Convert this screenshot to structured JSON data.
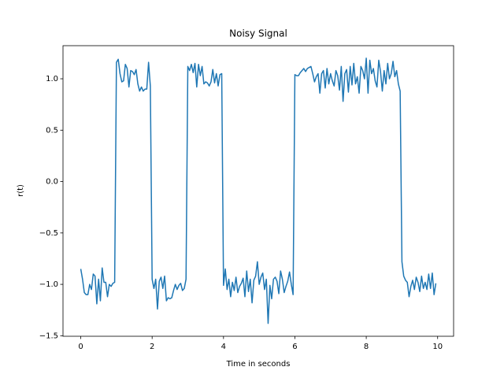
{
  "chart_data": {
    "type": "line",
    "title": "Noisy Signal",
    "x_label": "Time in seconds",
    "y_label": "r(t)",
    "color": "#1f77b4",
    "xlim": [
      -0.4975,
      10.4475
    ],
    "ylim": [
      -1.505,
      1.322
    ],
    "xticks": [
      0,
      2,
      4,
      6,
      8,
      10
    ],
    "yticks": [
      {
        "value": -1.5,
        "label": "−1.5"
      },
      {
        "value": -1.0,
        "label": "−1.0"
      },
      {
        "value": -0.5,
        "label": "−0.5"
      },
      {
        "value": 0.0,
        "label": "0.0"
      },
      {
        "value": 0.5,
        "label": "0.5"
      },
      {
        "value": 1.0,
        "label": "1.0"
      }
    ],
    "x": [
      0,
      0.05,
      0.1,
      0.15,
      0.2,
      0.25,
      0.3,
      0.35,
      0.4,
      0.45,
      0.5,
      0.55,
      0.6,
      0.65,
      0.7,
      0.75,
      0.8,
      0.85,
      0.9,
      0.95,
      1,
      1.05,
      1.1,
      1.15,
      1.2,
      1.25,
      1.3,
      1.35,
      1.4,
      1.45,
      1.5,
      1.55,
      1.6,
      1.65,
      1.7,
      1.75,
      1.8,
      1.85,
      1.9,
      1.95,
      2,
      2.05,
      2.1,
      2.15,
      2.2,
      2.25,
      2.3,
      2.35,
      2.4,
      2.45,
      2.5,
      2.55,
      2.6,
      2.65,
      2.7,
      2.75,
      2.8,
      2.85,
      2.9,
      2.95,
      3,
      3.05,
      3.1,
      3.15,
      3.2,
      3.25,
      3.3,
      3.35,
      3.4,
      3.45,
      3.5,
      3.55,
      3.6,
      3.65,
      3.7,
      3.75,
      3.8,
      3.85,
      3.9,
      3.95,
      4,
      4.05,
      4.1,
      4.15,
      4.2,
      4.25,
      4.3,
      4.35,
      4.4,
      4.45,
      4.5,
      4.55,
      4.6,
      4.65,
      4.7,
      4.75,
      4.8,
      4.85,
      4.9,
      4.95,
      5,
      5.05,
      5.1,
      5.15,
      5.2,
      5.25,
      5.3,
      5.35,
      5.4,
      5.45,
      5.5,
      5.55,
      5.6,
      5.65,
      5.7,
      5.75,
      5.8,
      5.85,
      5.9,
      5.95,
      6,
      6.05,
      6.1,
      6.15,
      6.2,
      6.25,
      6.3,
      6.35,
      6.4,
      6.45,
      6.5,
      6.55,
      6.6,
      6.65,
      6.7,
      6.75,
      6.8,
      6.85,
      6.9,
      6.95,
      7,
      7.05,
      7.1,
      7.15,
      7.2,
      7.25,
      7.3,
      7.35,
      7.4,
      7.45,
      7.5,
      7.55,
      7.6,
      7.65,
      7.7,
      7.75,
      7.8,
      7.85,
      7.9,
      7.95,
      8,
      8.05,
      8.1,
      8.15,
      8.2,
      8.25,
      8.3,
      8.35,
      8.4,
      8.45,
      8.5,
      8.55,
      8.6,
      8.65,
      8.7,
      8.75,
      8.8,
      8.85,
      8.9,
      8.95,
      9,
      9.05,
      9.1,
      9.15,
      9.2,
      9.25,
      9.3,
      9.35,
      9.4,
      9.45,
      9.5,
      9.55,
      9.6,
      9.65,
      9.7,
      9.75,
      9.8,
      9.85,
      9.9,
      9.95
    ],
    "values": [
      -0.85,
      -0.95,
      -1.08,
      -1.1,
      -1.1,
      -1.0,
      -1.05,
      -0.9,
      -0.92,
      -1.19,
      -0.95,
      -1.16,
      -0.84,
      -0.98,
      -0.98,
      -1.12,
      -1.0,
      -1.02,
      -0.99,
      -0.98,
      1.16,
      1.19,
      1.05,
      0.97,
      0.98,
      1.14,
      1.1,
      0.92,
      1.08,
      1.07,
      1.04,
      1.09,
      0.95,
      0.88,
      0.92,
      0.88,
      0.9,
      0.9,
      1.16,
      0.93,
      -0.95,
      -1.04,
      -0.95,
      -1.24,
      -0.97,
      -0.93,
      -1.04,
      -0.92,
      -1.16,
      -1.13,
      -1.14,
      -1.13,
      -1.06,
      -1.0,
      -1.05,
      -1.01,
      -0.99,
      -1.06,
      -1.04,
      -0.95,
      1.12,
      1.08,
      1.14,
      1.06,
      1.15,
      0.92,
      1.14,
      1.03,
      1.12,
      0.95,
      0.97,
      0.96,
      0.93,
      0.97,
      1.09,
      0.96,
      1.05,
      0.93,
      1.04,
      1.05,
      -1.01,
      -0.85,
      -1.05,
      -0.95,
      -1.12,
      -0.98,
      -1.06,
      -0.93,
      -1.08,
      -1.02,
      -0.99,
      -0.94,
      -1.12,
      -0.87,
      -1.07,
      -0.95,
      -1.18,
      -0.96,
      -0.92,
      -0.78,
      -1.0,
      -0.93,
      -0.89,
      -1.05,
      -0.95,
      -1.38,
      -1.01,
      -1.14,
      -0.95,
      -0.93,
      -0.97,
      -1.09,
      -0.87,
      -0.95,
      -1.08,
      -1.02,
      -0.97,
      -0.88,
      -1.0,
      -1.1,
      1.04,
      1.03,
      1.03,
      1.06,
      1.08,
      1.1,
      1.07,
      1.1,
      1.11,
      1.12,
      1.05,
      0.97,
      1.02,
      1.05,
      0.86,
      1.05,
      1.08,
      0.91,
      1.1,
      0.95,
      1.05,
      0.98,
      0.93,
      1.08,
      1.03,
      0.89,
      1.12,
      0.78,
      1.05,
      1.09,
      0.87,
      1.12,
      0.94,
      1.15,
      0.95,
      1.02,
      0.86,
      1.12,
      1.08,
      1.0,
      1.2,
      0.86,
      1.18,
      1.05,
      1.1,
      0.98,
      0.92,
      1.18,
      1.07,
      0.88,
      1.08,
      0.95,
      1.15,
      1.0,
      1.05,
      1.17,
      1.02,
      1.08,
      0.95,
      0.88,
      -0.78,
      -0.92,
      -0.96,
      -0.98,
      -1.12,
      -1.02,
      -0.96,
      -1.05,
      -0.93,
      -0.98,
      -1.07,
      -0.92,
      -1.04,
      -0.98,
      -1.05,
      -0.9,
      -1.04,
      -0.89,
      -1.1,
      -0.99
    ]
  }
}
